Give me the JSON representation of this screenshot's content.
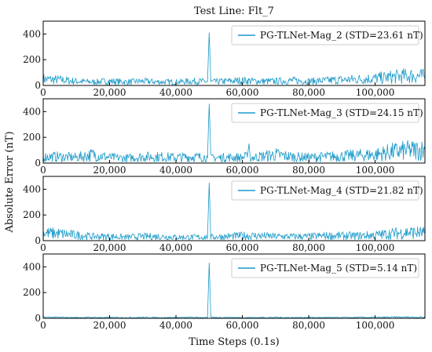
{
  "figure": {
    "title": "Test Line: Flt_7",
    "xlabel": "Time Steps (0.1s)",
    "ylabel": "Absolute Error (nT)",
    "line_color": "#1b9ac9"
  },
  "chart_data": [
    {
      "type": "line",
      "title": "Test Line: Flt_7",
      "xlabel": "",
      "ylabel": "",
      "xlim": [
        0,
        115000
      ],
      "ylim": [
        0,
        500
      ],
      "x_ticks": [
        0,
        20000,
        40000,
        60000,
        80000,
        100000
      ],
      "x_tick_labels": [
        "0",
        "20,000",
        "40,000",
        "60,000",
        "80,000",
        "100,000"
      ],
      "y_ticks": [
        0,
        200,
        400
      ],
      "y_tick_labels": [
        "0",
        "200",
        "400"
      ],
      "legend_position": "top-right",
      "series": [
        {
          "name": "PG-TLNet-Mag_2 (STD=23.61 nT)",
          "color": "#1b9ac9",
          "x": [
            0,
            5000,
            10000,
            15000,
            20000,
            25000,
            30000,
            35000,
            40000,
            45000,
            49500,
            50000,
            50500,
            55000,
            60000,
            65000,
            70000,
            75000,
            80000,
            85000,
            90000,
            95000,
            100000,
            105000,
            110000,
            115000
          ],
          "values": [
            45,
            40,
            30,
            25,
            30,
            25,
            30,
            25,
            25,
            30,
            28,
            410,
            25,
            30,
            35,
            30,
            30,
            35,
            30,
            35,
            40,
            45,
            50,
            60,
            70,
            65
          ]
        }
      ]
    },
    {
      "type": "line",
      "xlabel": "",
      "ylabel": "",
      "xlim": [
        0,
        115000
      ],
      "ylim": [
        0,
        500
      ],
      "x_ticks": [
        0,
        20000,
        40000,
        60000,
        80000,
        100000
      ],
      "x_tick_labels": [
        "0",
        "20,000",
        "40,000",
        "60,000",
        "80,000",
        "100,000"
      ],
      "y_ticks": [
        0,
        200,
        400
      ],
      "y_tick_labels": [
        "0",
        "200",
        "400"
      ],
      "legend_position": "top-right",
      "series": [
        {
          "name": "PG-TLNet-Mag_3 (STD=24.15 nT)",
          "color": "#1b9ac9",
          "x": [
            0,
            5000,
            10000,
            15000,
            20000,
            25000,
            30000,
            35000,
            40000,
            45000,
            49500,
            50000,
            50500,
            55000,
            60000,
            61500,
            62000,
            62500,
            65000,
            70000,
            75000,
            80000,
            85000,
            90000,
            95000,
            100000,
            105000,
            110000,
            115000
          ],
          "values": [
            45,
            45,
            40,
            60,
            40,
            35,
            45,
            45,
            40,
            45,
            40,
            460,
            35,
            40,
            40,
            45,
            150,
            40,
            45,
            60,
            45,
            40,
            45,
            50,
            55,
            60,
            80,
            90,
            95
          ]
        }
      ]
    },
    {
      "type": "line",
      "xlabel": "",
      "ylabel": "",
      "xlim": [
        0,
        115000
      ],
      "ylim": [
        0,
        500
      ],
      "x_ticks": [
        0,
        20000,
        40000,
        60000,
        80000,
        100000
      ],
      "x_tick_labels": [
        "0",
        "20,000",
        "40,000",
        "60,000",
        "80,000",
        "100,000"
      ],
      "y_ticks": [
        0,
        200,
        400
      ],
      "y_tick_labels": [
        "0",
        "200",
        "400"
      ],
      "legend_position": "top-right",
      "series": [
        {
          "name": "PG-TLNet-Mag_4 (STD=21.82 nT)",
          "color": "#1b9ac9",
          "x": [
            0,
            5000,
            10000,
            15000,
            20000,
            25000,
            30000,
            35000,
            40000,
            45000,
            49500,
            50000,
            50500,
            55000,
            60000,
            65000,
            70000,
            75000,
            80000,
            85000,
            90000,
            95000,
            100000,
            105000,
            110000,
            115000
          ],
          "values": [
            55,
            50,
            40,
            30,
            30,
            25,
            30,
            30,
            25,
            25,
            25,
            450,
            25,
            30,
            35,
            35,
            30,
            30,
            30,
            35,
            35,
            35,
            40,
            50,
            60,
            55
          ]
        }
      ]
    },
    {
      "type": "line",
      "xlabel": "",
      "ylabel": "",
      "xlim": [
        0,
        115000
      ],
      "ylim": [
        0,
        500
      ],
      "x_ticks": [
        0,
        20000,
        40000,
        60000,
        80000,
        100000
      ],
      "x_tick_labels": [
        "0",
        "20,000",
        "40,000",
        "60,000",
        "80,000",
        "100,000"
      ],
      "y_ticks": [
        0,
        200,
        400
      ],
      "y_tick_labels": [
        "0",
        "200",
        "400"
      ],
      "legend_position": "top-right",
      "series": [
        {
          "name": "PG-TLNet-Mag_5 (STD=5.14 nT)",
          "color": "#1b9ac9",
          "x": [
            0,
            5000,
            10000,
            15000,
            20000,
            25000,
            30000,
            35000,
            40000,
            45000,
            49500,
            50000,
            50500,
            55000,
            60000,
            65000,
            70000,
            75000,
            80000,
            85000,
            90000,
            95000,
            100000,
            105000,
            110000,
            115000
          ],
          "values": [
            8,
            6,
            5,
            6,
            5,
            5,
            6,
            5,
            5,
            6,
            5,
            430,
            5,
            6,
            5,
            5,
            6,
            5,
            6,
            5,
            5,
            6,
            6,
            7,
            8,
            7
          ]
        }
      ]
    }
  ]
}
